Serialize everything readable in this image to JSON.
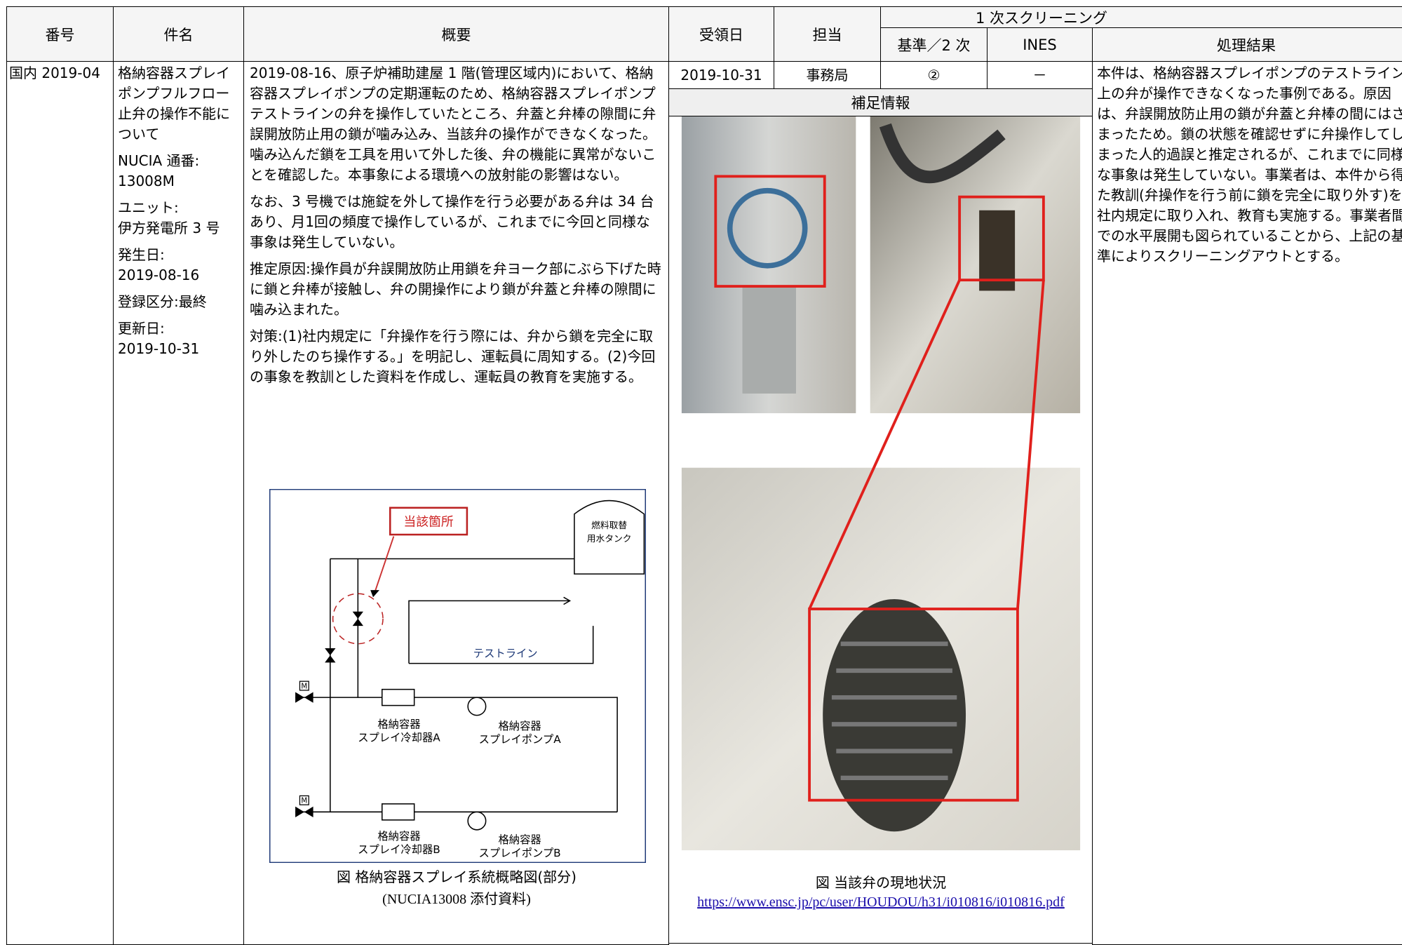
{
  "header": {
    "number": "番号",
    "subject": "件名",
    "summary": "概要",
    "received": "受領日",
    "handler": "担当",
    "screening": "1 次スクリーニング",
    "criteria": "基準／2 次",
    "ines": "INES",
    "result": "処理結果"
  },
  "record": {
    "number": "国内 2019-04",
    "subject": "格納容器スプレイポンプフルフロー止弁の操作不能について",
    "details": [
      [
        "NUCIA 通番:",
        "13008M"
      ],
      [
        "ユニット:",
        "伊方発電所 3 号"
      ],
      [
        "発生日:",
        "2019-08-16"
      ],
      [
        "登録区分:最終"
      ],
      [
        "更新日:",
        "2019-10-31"
      ]
    ],
    "summary": [
      "2019-08-16、原子炉補助建屋 1 階(管理区域内)において、格納容器スプレイポンプの定期運転のため、格納容器スプレイポンプテストラインの弁を操作していたところ、弁蓋と弁棒の隙間に弁誤開放防止用の鎖が噛み込み、当該弁の操作ができなくなった。噛み込んだ鎖を工具を用いて外した後、弁の機能に異常がないことを確認した。本事象による環境への放射能の影響はない。",
      "なお、3 号機では施錠を外して操作を行う必要がある弁は 34 台あり、月1回の頻度で操作しているが、これまでに今回と同様な事象は発生していない。",
      "推定原因:操作員が弁誤開放防止用鎖を弁ヨーク部にぶら下げた時に鎖と弁棒が接触し、弁の開操作により鎖が弁蓋と弁棒の隙間に噛み込まれた。",
      "対策:(1)社内規定に「弁操作を行う際には、弁から鎖を完全に取り外したのち操作する。」を明記し、運転員に周知する。(2)今回の事象を教訓とした資料を作成し、運転員の教育を実施する。"
    ],
    "received": "2019-10-31",
    "handler": "事務局",
    "criteria": "②",
    "ines": "－",
    "result": "本件は、格納容器スプレイポンプのテストライン上の弁が操作できなくなった事例である。原因は、弁誤開放防止用の鎖が弁蓋と弁棒の間にはさまったため。鎖の状態を確認せずに弁操作してしまった人的過誤と推定されるが、これまでに同様な事象は発生していない。事業者は、本件から得た教訓(弁操作を行う前に鎖を完全に取り外す)を社内規定に取り入れ、教育も実施する。事業者間での水平展開も図られていることから、上記の基準によりスクリーニングアウトとする。"
  },
  "supplement": {
    "title": "補足情報",
    "photo_caption": "図 当該弁の現地状況",
    "url": "https://www.ensc.jp/pc/user/HOUDOU/h31/i010816/i010816.pdf"
  },
  "diagram": {
    "highlight": "当該箇所",
    "tank": [
      "燃料取替",
      "用水タンク"
    ],
    "test_line": "テストライン",
    "cooler_a": [
      "格納容器",
      "スプレイ冷却器A"
    ],
    "pump_a": [
      "格納容器",
      "スプレイポンプA"
    ],
    "cooler_b": [
      "格納容器",
      "スプレイ冷却器B"
    ],
    "pump_b": [
      "格納容器",
      "スプレイポンプB"
    ],
    "motor": "M",
    "caption": "図 格納容器スプレイ系統概略図(部分)",
    "source": "(NUCIA13008 添付資料)"
  }
}
